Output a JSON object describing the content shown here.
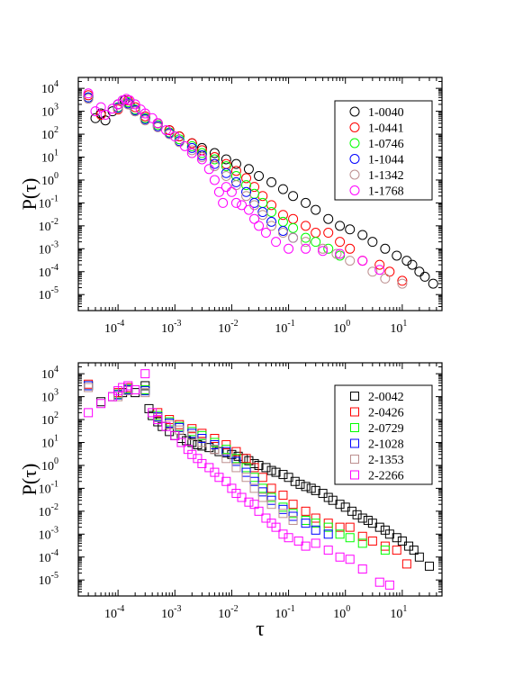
{
  "chart_data": [
    {
      "type": "scatter",
      "xscale": "log",
      "yscale": "log",
      "xlim": [
        2e-05,
        50
      ],
      "ylim": [
        2e-06,
        30000.0
      ],
      "ylabel": "P(τ)",
      "xlabel": "",
      "marker": "circle",
      "legend_position": "top-right",
      "xticks": [
        "10-4",
        "10-3",
        "10-2",
        "10-1",
        "100",
        "101"
      ],
      "yticks": [
        "10-5",
        "10-4",
        "10-3",
        "10-2",
        "10-1",
        "100",
        "101",
        "102",
        "103",
        "104"
      ],
      "series": [
        {
          "name": "1-0040",
          "color": "#000000",
          "x": [
            3e-05,
            4e-05,
            5e-05,
            6e-05,
            8e-05,
            0.0001,
            0.00013,
            0.00016,
            0.0002,
            0.0003,
            0.0005,
            0.0008,
            0.0012,
            0.002,
            0.003,
            0.005,
            0.008,
            0.012,
            0.02,
            0.03,
            0.05,
            0.08,
            0.12,
            0.2,
            0.3,
            0.5,
            0.8,
            1.2,
            2,
            3,
            5,
            8,
            12,
            15,
            20,
            25,
            35
          ],
          "y": [
            4000,
            500,
            800,
            400,
            1000,
            2000,
            3000,
            2000,
            1000,
            500,
            300,
            150,
            80,
            40,
            25,
            15,
            8,
            5,
            3,
            1.5,
            0.8,
            0.4,
            0.2,
            0.1,
            0.05,
            0.02,
            0.01,
            0.007,
            0.004,
            0.002,
            0.001,
            0.0005,
            0.0003,
            0.0002,
            0.0001,
            6e-05,
            3e-05
          ]
        },
        {
          "name": "1-0441",
          "color": "#ff0000",
          "x": [
            3e-05,
            5e-05,
            0.0001,
            0.00015,
            0.0002,
            0.0003,
            0.0005,
            0.0008,
            0.0012,
            0.002,
            0.003,
            0.005,
            0.008,
            0.012,
            0.018,
            0.025,
            0.035,
            0.05,
            0.08,
            0.12,
            0.2,
            0.3,
            0.5,
            0.8,
            1.2,
            2,
            4,
            6,
            10
          ],
          "y": [
            5000,
            700,
            1200,
            3000,
            1500,
            600,
            300,
            150,
            80,
            40,
            20,
            10,
            5,
            2.5,
            1.2,
            0.5,
            0.2,
            0.08,
            0.03,
            0.02,
            0.01,
            0.005,
            0.005,
            0.002,
            0.001,
            0.0003,
            0.0002,
            0.0001,
            4e-05
          ]
        },
        {
          "name": "1-0746",
          "color": "#00ff00",
          "x": [
            3e-05,
            0.0001,
            0.00015,
            0.0002,
            0.0003,
            0.0005,
            0.0008,
            0.0012,
            0.002,
            0.003,
            0.005,
            0.008,
            0.012,
            0.018,
            0.025,
            0.035,
            0.05,
            0.08,
            0.12,
            0.2,
            0.3,
            0.5,
            0.8
          ],
          "y": [
            4000,
            1500,
            2500,
            1200,
            500,
            250,
            120,
            60,
            30,
            15,
            8,
            4,
            1.5,
            0.6,
            0.25,
            0.1,
            0.04,
            0.015,
            0.008,
            0.003,
            0.002,
            0.001,
            0.0005
          ]
        },
        {
          "name": "1-1044",
          "color": "#0000ff",
          "x": [
            3e-05,
            0.0001,
            0.00015,
            0.0002,
            0.0003,
            0.0005,
            0.0008,
            0.0012,
            0.002,
            0.003,
            0.005,
            0.008,
            0.012,
            0.018,
            0.025,
            0.035,
            0.05,
            0.08,
            0.12
          ],
          "y": [
            4000,
            1400,
            2200,
            1100,
            450,
            220,
            110,
            50,
            25,
            12,
            5,
            2,
            0.8,
            0.3,
            0.1,
            0.04,
            0.015,
            0.006,
            0.003
          ]
        },
        {
          "name": "1-1342",
          "color": "#bc8f8f",
          "x": [
            3e-05,
            0.0001,
            0.00015,
            0.0002,
            0.0003,
            0.0005,
            0.0008,
            0.0012,
            0.002,
            0.003,
            0.005,
            0.008,
            0.012,
            0.018,
            0.025,
            0.035,
            0.05,
            0.08,
            0.12,
            0.2,
            0.4,
            0.7,
            1.2,
            3,
            5,
            10
          ],
          "y": [
            3500,
            1300,
            2000,
            1000,
            400,
            200,
            100,
            45,
            20,
            10,
            4,
            1.5,
            0.6,
            0.2,
            0.08,
            0.03,
            0.01,
            0.005,
            0.003,
            0.002,
            0.001,
            0.0006,
            0.0003,
            0.0001,
            5e-05,
            3e-05
          ]
        },
        {
          "name": "1-1768",
          "color": "#ff00ff",
          "x": [
            3e-05,
            4e-05,
            5e-05,
            6e-05,
            8e-05,
            0.0001,
            0.00012,
            0.00014,
            0.00016,
            0.0002,
            0.00025,
            0.0003,
            0.0004,
            0.0005,
            0.0007,
            0.001,
            0.0015,
            0.002,
            0.003,
            0.004,
            0.005,
            0.006,
            0.007,
            0.008,
            0.01,
            0.012,
            0.015,
            0.02,
            0.025,
            0.03,
            0.04,
            0.06,
            0.1,
            0.2,
            0.4,
            0.8,
            2,
            4
          ],
          "y": [
            6000,
            1000,
            1500,
            700,
            1300,
            2000,
            3000,
            3500,
            3000,
            2000,
            1200,
            800,
            500,
            300,
            150,
            80,
            30,
            15,
            8,
            3,
            1,
            0.3,
            0.1,
            0.5,
            0.3,
            0.1,
            0.08,
            0.05,
            0.02,
            0.01,
            0.005,
            0.002,
            0.001,
            0.001,
            0.0008,
            0.0006,
            0.0003,
            0.00012
          ]
        }
      ]
    },
    {
      "type": "scatter",
      "xscale": "log",
      "yscale": "log",
      "xlim": [
        2e-05,
        50
      ],
      "ylim": [
        2e-06,
        30000.0
      ],
      "ylabel": "P(τ)",
      "xlabel": "τ",
      "marker": "square",
      "legend_position": "top-right",
      "xticks": [
        "10-4",
        "10-3",
        "10-2",
        "10-1",
        "100",
        "101"
      ],
      "yticks": [
        "10-5",
        "10-4",
        "10-3",
        "10-2",
        "10-1",
        "100",
        "101",
        "102",
        "103",
        "104"
      ],
      "series": [
        {
          "name": "2-0042",
          "color": "#000000",
          "x": [
            3e-05,
            5e-05,
            8e-05,
            0.00012,
            0.00015,
            0.0002,
            0.0003,
            0.00035,
            0.0004,
            0.0005,
            0.0006,
            0.0008,
            0.001,
            0.0013,
            0.0016,
            0.002,
            0.0025,
            0.003,
            0.004,
            0.005,
            0.006,
            0.008,
            0.01,
            0.013,
            0.016,
            0.02,
            0.025,
            0.03,
            0.04,
            0.05,
            0.06,
            0.08,
            0.1,
            0.13,
            0.16,
            0.2,
            0.25,
            0.3,
            0.4,
            0.5,
            0.6,
            0.8,
            1,
            1.3,
            1.6,
            2,
            2.5,
            3,
            4,
            5,
            6,
            8,
            10,
            13,
            16,
            20,
            30
          ],
          "y": [
            3000,
            600,
            1000,
            1500,
            2500,
            1500,
            3000,
            300,
            150,
            80,
            50,
            30,
            20,
            15,
            12,
            10,
            8,
            7,
            6,
            5,
            4,
            3.5,
            3,
            2.5,
            2,
            1.6,
            1.2,
            1,
            0.8,
            0.6,
            0.5,
            0.4,
            0.3,
            0.2,
            0.15,
            0.12,
            0.1,
            0.08,
            0.06,
            0.04,
            0.03,
            0.02,
            0.015,
            0.01,
            0.007,
            0.005,
            0.004,
            0.003,
            0.002,
            0.0015,
            0.001,
            0.0007,
            0.0005,
            0.0003,
            0.0002,
            0.0001,
            4e-05
          ]
        },
        {
          "name": "2-0426",
          "color": "#ff0000",
          "x": [
            3e-05,
            0.0001,
            0.00015,
            0.0003,
            0.0005,
            0.0008,
            0.0012,
            0.002,
            0.003,
            0.005,
            0.008,
            0.012,
            0.018,
            0.025,
            0.035,
            0.05,
            0.08,
            0.12,
            0.2,
            0.3,
            0.5,
            0.8,
            1.2,
            2,
            3,
            5,
            8,
            12
          ],
          "y": [
            3500,
            1500,
            2500,
            2000,
            200,
            100,
            60,
            40,
            25,
            15,
            8,
            4,
            2,
            0.8,
            0.3,
            0.1,
            0.05,
            0.02,
            0.01,
            0.005,
            0.003,
            0.002,
            0.002,
            0.0008,
            0.0005,
            0.0003,
            0.0002,
            5e-05
          ]
        },
        {
          "name": "2-0729",
          "color": "#00ff00",
          "x": [
            3e-05,
            0.0001,
            0.00015,
            0.0003,
            0.0005,
            0.0008,
            0.0012,
            0.002,
            0.003,
            0.005,
            0.008,
            0.012,
            0.018,
            0.025,
            0.035,
            0.05,
            0.08,
            0.12,
            0.2,
            0.3,
            0.5,
            0.8,
            1.2,
            2,
            5
          ],
          "y": [
            3000,
            1300,
            2200,
            2000,
            150,
            80,
            50,
            30,
            20,
            10,
            5,
            2,
            0.8,
            0.3,
            0.1,
            0.04,
            0.015,
            0.008,
            0.004,
            0.003,
            0.002,
            0.001,
            0.0007,
            0.0004,
            0.0002
          ]
        },
        {
          "name": "2-1028",
          "color": "#0000ff",
          "x": [
            3e-05,
            0.0001,
            0.00015,
            0.0003,
            0.0005,
            0.0008,
            0.0012,
            0.002,
            0.003,
            0.005,
            0.008,
            0.012,
            0.018,
            0.025,
            0.035,
            0.05,
            0.08,
            0.12,
            0.2,
            0.3,
            0.5
          ],
          "y": [
            3000,
            1200,
            2000,
            1800,
            130,
            70,
            45,
            25,
            15,
            8,
            4,
            1.5,
            0.5,
            0.2,
            0.07,
            0.03,
            0.012,
            0.006,
            0.003,
            0.0015,
            0.001
          ]
        },
        {
          "name": "2-1353",
          "color": "#bc8f8f",
          "x": [
            3e-05,
            0.0001,
            0.00015,
            0.0003,
            0.0005,
            0.0008,
            0.0012,
            0.002,
            0.003,
            0.005,
            0.008,
            0.012,
            0.018,
            0.025,
            0.035,
            0.05,
            0.08,
            0.12
          ],
          "y": [
            2500,
            1000,
            1800,
            1500,
            120,
            60,
            35,
            20,
            10,
            5,
            2,
            0.8,
            0.3,
            0.1,
            0.04,
            0.02,
            0.008,
            0.004
          ]
        },
        {
          "name": "2-2266",
          "color": "#ff00ff",
          "x": [
            3e-05,
            5e-05,
            8e-05,
            0.0001,
            0.00012,
            0.00015,
            0.0002,
            0.0003,
            0.0004,
            0.0005,
            0.0007,
            0.001,
            0.0013,
            0.0017,
            0.002,
            0.0025,
            0.003,
            0.004,
            0.005,
            0.006,
            0.008,
            0.01,
            0.012,
            0.015,
            0.02,
            0.025,
            0.03,
            0.04,
            0.05,
            0.06,
            0.08,
            0.1,
            0.15,
            0.2,
            0.3,
            0.5,
            0.8,
            1.2,
            2,
            4,
            6
          ],
          "y": [
            200,
            500,
            1000,
            1800,
            2500,
            3000,
            2000,
            10000,
            200,
            100,
            50,
            20,
            10,
            5,
            3,
            2,
            1.2,
            0.8,
            0.5,
            0.3,
            0.2,
            0.1,
            0.06,
            0.04,
            0.025,
            0.02,
            0.01,
            0.005,
            0.003,
            0.002,
            0.001,
            0.0007,
            0.0005,
            0.0003,
            0.0004,
            0.0002,
            0.0001,
            8e-05,
            3e-05,
            8e-06,
            6e-06
          ]
        }
      ]
    }
  ]
}
